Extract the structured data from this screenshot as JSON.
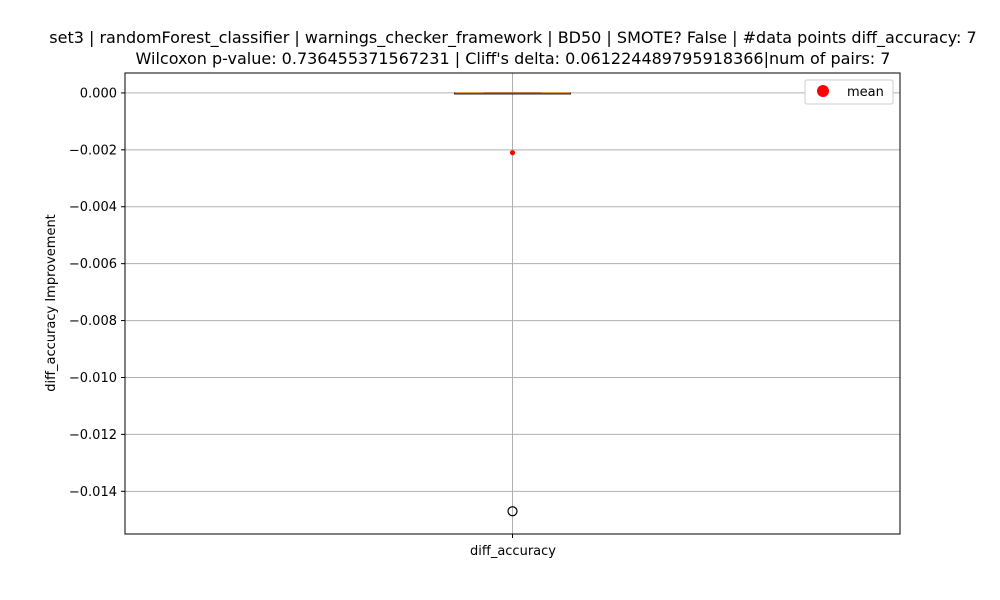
{
  "chart_data": {
    "type": "box",
    "title_line1": "set3 | randomForest_classifier | warnings_checker_framework | BD50 | SMOTE? False | #data points diff_accuracy: 7",
    "title_line2": "Wilcoxon p-value: 0.736455371567231 | Cliff's delta: 0.061224489795918366|num of pairs: 7",
    "ylabel": "diff_accuracy Improvement",
    "categories": [
      "diff_accuracy"
    ],
    "ylim": [
      -0.0155,
      0.0007
    ],
    "yticks": [
      0.0,
      -0.002,
      -0.004,
      -0.006,
      -0.008,
      -0.01,
      -0.012,
      -0.014
    ],
    "ytick_labels": [
      "0.000",
      "−0.002",
      "−0.004",
      "−0.006",
      "−0.008",
      "−0.010",
      "−0.012",
      "−0.014"
    ],
    "grid": true,
    "legend": {
      "entries": [
        "mean"
      ],
      "placement": "top-right"
    },
    "box": {
      "q1": 0.0,
      "median": 0.0,
      "q3": 0.0,
      "whisker_low": 0.0,
      "whisker_high": 0.0,
      "outliers": [
        -0.0147
      ],
      "mean": -0.0021
    },
    "colors": {
      "mean": "#ff0000",
      "median": "#ff7f0e",
      "grid": "#b0b0b0",
      "outlier_edge": "#000000"
    }
  }
}
